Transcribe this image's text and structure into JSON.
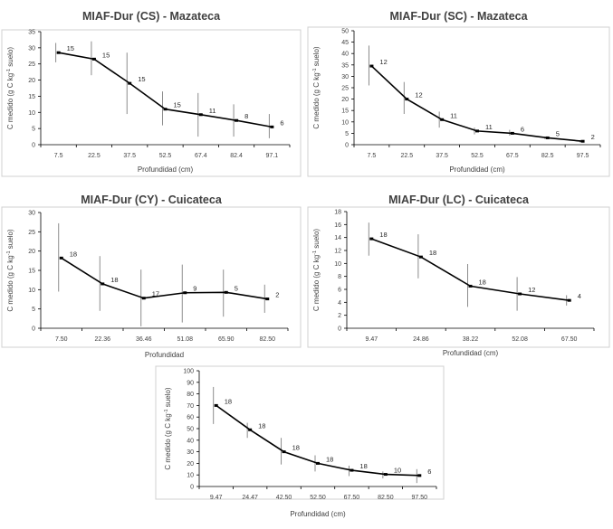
{
  "figure": {
    "chart_data": [
      {
        "type": "line",
        "title": "MIAF-Dur (CS) - Mazateca",
        "xlabel": "Profundidad (cm)",
        "ylabel": "C medido (g C kg-1 suelo)",
        "ylabel_parts": [
          "C medido (g C kg",
          "-1",
          " suelo)"
        ],
        "categories": [
          "7.5",
          "22.5",
          "37.5",
          "52.5",
          "67.4",
          "82.4",
          "97.1"
        ],
        "values": [
          28.5,
          26.5,
          19,
          11,
          9.3,
          7.5,
          5.5
        ],
        "error_low": [
          25.5,
          21.5,
          9.5,
          6.0,
          2.5,
          2.5,
          2.0
        ],
        "error_high": [
          31.5,
          32.0,
          28.5,
          16.5,
          16.0,
          12.5,
          9.5
        ],
        "n_labels": [
          "15",
          "15",
          "15",
          "15",
          "11",
          "8",
          "6"
        ],
        "ylim": [
          0,
          35
        ],
        "yticks": [
          0,
          5,
          10,
          15,
          20,
          25,
          30,
          35
        ]
      },
      {
        "type": "line",
        "title": "MIAF-Dur  (SC) - Mazateca",
        "xlabel": "Profundidad (cm)",
        "ylabel": "C medido (g C kg-1 suelo)",
        "ylabel_parts": [
          "C medido (g C kg",
          "-1",
          " suelo)"
        ],
        "categories": [
          "7.5",
          "22.5",
          "37.5",
          "52.5",
          "67.5",
          "82.5",
          "97.5"
        ],
        "values": [
          34.5,
          20,
          11,
          6,
          5,
          3,
          1.5
        ],
        "error_low": [
          26,
          13.5,
          7.5,
          4.5,
          4.0,
          2.5,
          1.0
        ],
        "error_high": [
          43.5,
          27.5,
          14.5,
          7.5,
          6.5,
          3.5,
          2.0
        ],
        "n_labels": [
          "12",
          "12",
          "11",
          "11",
          "6",
          "5",
          "2"
        ],
        "ylim": [
          0,
          50
        ],
        "yticks": [
          0,
          5,
          10,
          15,
          20,
          25,
          30,
          35,
          40,
          45,
          50
        ]
      },
      {
        "type": "line",
        "title": "MIAF-Dur (CY) - Cuicateca",
        "xlabel": "Profundidad",
        "ylabel": "C medido (g C kg-1 suelo)",
        "ylabel_parts": [
          "C medido (g C kg",
          "-1",
          " suelo)"
        ],
        "categories": [
          "7.50",
          "22.36",
          "36.46",
          "51.08",
          "65.90",
          "82.50"
        ],
        "values": [
          18.2,
          11.5,
          7.8,
          9.2,
          9.3,
          7.6
        ],
        "error_low": [
          9.5,
          4.5,
          0.5,
          1.5,
          3.0,
          4.0
        ],
        "error_high": [
          27.2,
          18.7,
          15.2,
          16.5,
          15.2,
          11.3
        ],
        "n_labels": [
          "18",
          "18",
          "17",
          "9",
          "5",
          "2"
        ],
        "ylim": [
          0,
          30
        ],
        "yticks": [
          0,
          5,
          10,
          15,
          20,
          25,
          30
        ]
      },
      {
        "type": "line",
        "title": "MIAF-Dur (LC) - Cuicateca",
        "xlabel": "Profundidad (cm)",
        "ylabel": "C medido (g C kg-1 suelo)",
        "ylabel_parts": [
          "C medido (g C kg",
          "-1",
          " suelo)"
        ],
        "categories": [
          "9.47",
          "24.86",
          "38.22",
          "52.08",
          "67.50"
        ],
        "values": [
          13.8,
          11,
          6.5,
          5.3,
          4.3
        ],
        "error_low": [
          11.2,
          7.7,
          3.3,
          2.7,
          3.5
        ],
        "error_high": [
          16.3,
          14.5,
          9.9,
          7.9,
          5.1
        ],
        "n_labels": [
          "18",
          "18",
          "18",
          "12",
          "4"
        ],
        "ylim": [
          0,
          18
        ],
        "yticks": [
          0,
          2,
          4,
          6,
          8,
          10,
          12,
          14,
          16,
          18
        ]
      },
      {
        "type": "line",
        "title": "",
        "xlabel": "Profundidad (cm)",
        "ylabel": "C medido (g C kg-1 suelo)",
        "ylabel_parts": [
          "C medido (g C kg",
          "-1",
          " suelo)"
        ],
        "categories": [
          "9.47",
          "24.47",
          "42.50",
          "52.50",
          "67.50",
          "82.50",
          "97.50"
        ],
        "values": [
          70,
          49,
          30,
          20,
          14,
          10.5,
          9.5
        ],
        "error_low": [
          54,
          42,
          19,
          13,
          9,
          7,
          3
        ],
        "error_high": [
          86,
          55,
          42,
          27,
          18,
          13,
          15
        ],
        "n_labels": [
          "18",
          "18",
          "18",
          "18",
          "18",
          "10",
          "6"
        ],
        "ylim": [
          0,
          100
        ],
        "yticks": [
          0,
          10,
          20,
          30,
          40,
          50,
          60,
          70,
          80,
          90,
          100
        ]
      }
    ]
  }
}
